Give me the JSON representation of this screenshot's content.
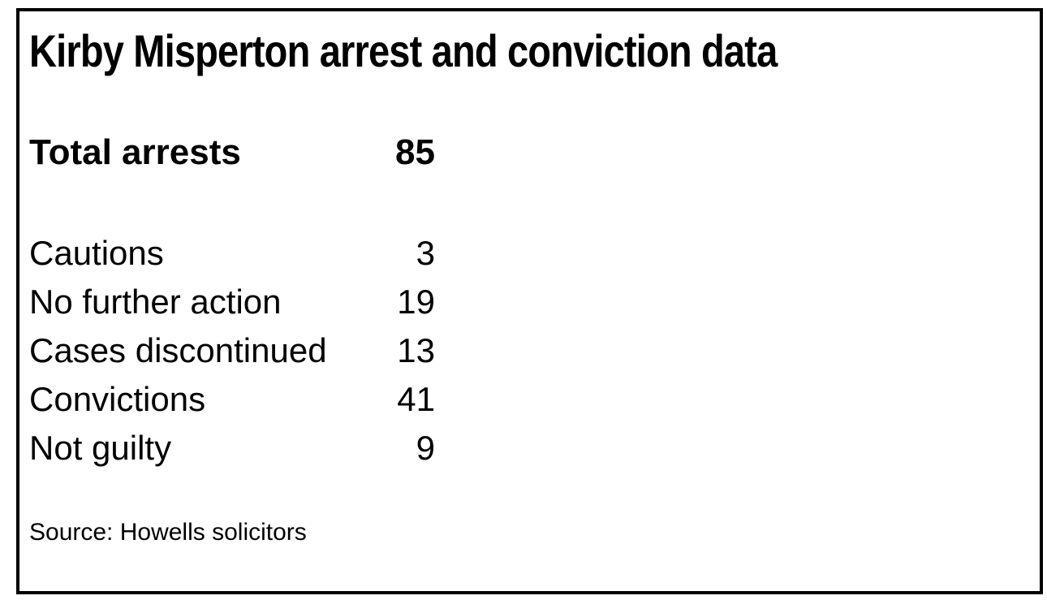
{
  "chart_data": {
    "type": "table",
    "title": "Kirby Misperton arrest and conviction data",
    "categories": [
      "Total arrests",
      "Cautions",
      "No further action",
      "Cases discontinued",
      "Convictions",
      "Not guilty"
    ],
    "values": [
      85,
      3,
      19,
      13,
      41,
      9
    ],
    "source": "Source: Howells solicitors",
    "layout": {
      "value_alignment": "right",
      "grid": false,
      "legend": false,
      "emphasized_row": "Total arrests"
    }
  },
  "colors": {
    "text": "#000000",
    "border": "#000000",
    "background": "#ffffff"
  }
}
